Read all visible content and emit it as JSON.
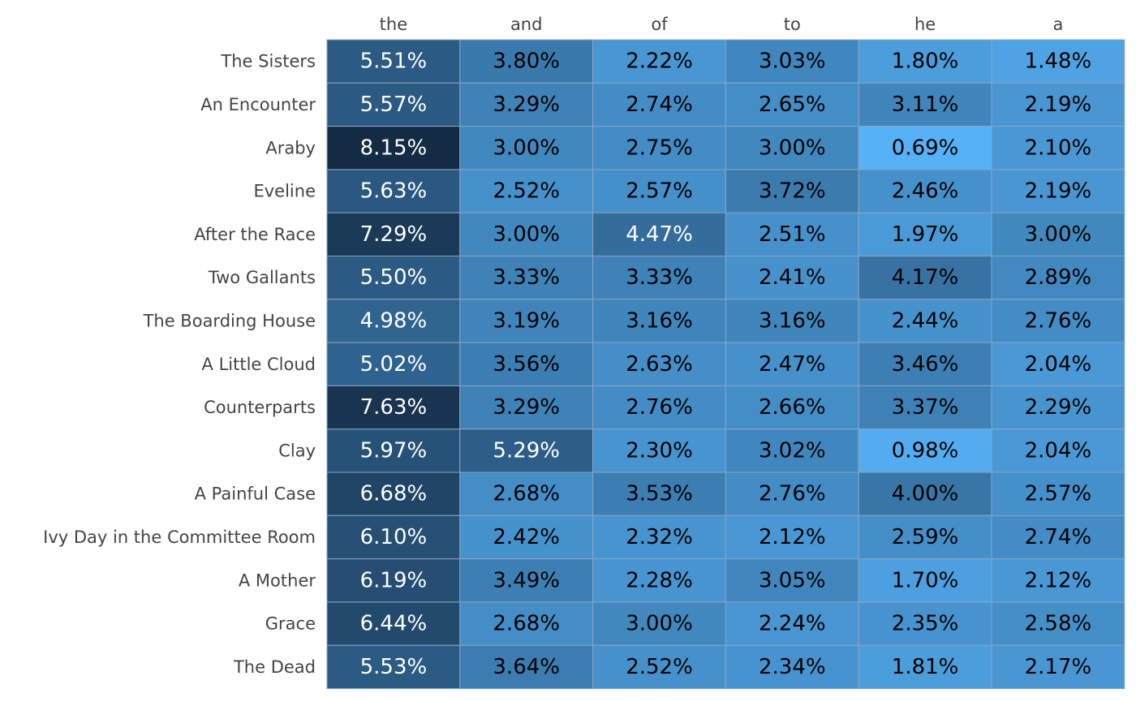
{
  "chart_data": {
    "type": "heatmap",
    "columns": [
      "the",
      "and",
      "of",
      "to",
      "he",
      "a"
    ],
    "rows": [
      "The Sisters",
      "An Encounter",
      "Araby",
      "Eveline",
      "After the Race",
      "Two Gallants",
      "The Boarding House",
      "A Little Cloud",
      "Counterparts",
      "Clay",
      "A Painful Case",
      "Ivy Day in the Committee Room",
      "A Mother",
      "Grace",
      "The Dead"
    ],
    "values": [
      [
        5.51,
        3.8,
        2.22,
        3.03,
        1.8,
        1.48
      ],
      [
        5.57,
        3.29,
        2.74,
        2.65,
        3.11,
        2.19
      ],
      [
        8.15,
        3.0,
        2.75,
        3.0,
        0.69,
        2.1
      ],
      [
        5.63,
        2.52,
        2.57,
        3.72,
        2.46,
        2.19
      ],
      [
        7.29,
        3.0,
        4.47,
        2.51,
        1.97,
        3.0
      ],
      [
        5.5,
        3.33,
        3.33,
        2.41,
        4.17,
        2.89
      ],
      [
        4.98,
        3.19,
        3.16,
        3.16,
        2.44,
        2.76
      ],
      [
        5.02,
        3.56,
        2.63,
        2.47,
        3.46,
        2.04
      ],
      [
        7.63,
        3.29,
        2.76,
        2.66,
        3.37,
        2.29
      ],
      [
        5.97,
        5.29,
        2.3,
        3.02,
        0.98,
        2.04
      ],
      [
        6.68,
        2.68,
        3.53,
        2.76,
        4.0,
        2.57
      ],
      [
        6.1,
        2.42,
        2.32,
        2.12,
        2.59,
        2.74
      ],
      [
        6.19,
        3.49,
        2.28,
        3.05,
        1.7,
        2.12
      ],
      [
        6.44,
        2.68,
        3.0,
        2.24,
        2.35,
        2.58
      ],
      [
        5.53,
        3.64,
        2.52,
        2.34,
        1.81,
        2.17
      ]
    ],
    "unit": "%",
    "color_low": "#56b1f7",
    "color_high": "#132b43",
    "value_range": [
      0.69,
      8.15
    ],
    "grid_line_color": "#8aa6c4"
  }
}
